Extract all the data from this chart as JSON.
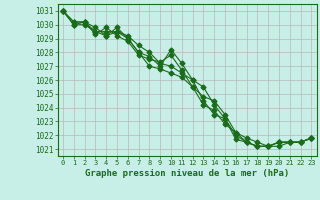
{
  "title": "Graphe pression niveau de la mer (hPa)",
  "background_color": "#c8eee8",
  "grid_color": "#b8b8b8",
  "line_color": "#1a6b1a",
  "x_values": [
    0,
    1,
    2,
    3,
    4,
    5,
    6,
    7,
    8,
    9,
    10,
    11,
    12,
    13,
    14,
    15,
    16,
    17,
    18,
    19,
    20,
    21,
    22,
    23
  ],
  "series": [
    [
      1031.0,
      1030.0,
      1030.2,
      1029.5,
      1029.5,
      1029.5,
      1029.0,
      1028.0,
      1027.7,
      1027.0,
      1028.2,
      1027.2,
      1026.0,
      1025.5,
      1024.2,
      1023.2,
      1021.7,
      1021.5,
      1021.2,
      1021.2,
      1021.5,
      1021.5,
      1021.5,
      1021.8
    ],
    [
      1031.0,
      1030.2,
      1030.2,
      1029.8,
      1029.2,
      1029.5,
      1029.2,
      1028.5,
      1028.0,
      1027.2,
      1027.0,
      1026.5,
      1026.0,
      1024.5,
      1023.5,
      1023.2,
      1022.0,
      1021.5,
      1021.2,
      1021.2,
      1021.2,
      1021.5,
      1021.5,
      1021.8
    ],
    [
      1031.0,
      1030.2,
      1030.2,
      1029.3,
      1029.8,
      1029.2,
      1028.8,
      1027.8,
      1027.5,
      1027.3,
      1027.8,
      1026.7,
      1025.5,
      1024.8,
      1024.5,
      1023.5,
      1022.2,
      1021.8,
      1021.5,
      1021.2,
      1021.5,
      1021.5,
      1021.5,
      1021.8
    ],
    [
      1031.0,
      1030.0,
      1030.0,
      1029.5,
      1029.2,
      1029.8,
      1029.0,
      1028.0,
      1027.0,
      1026.8,
      1026.5,
      1026.2,
      1025.5,
      1024.2,
      1023.8,
      1022.8,
      1022.2,
      1021.5,
      1021.2,
      1021.2,
      1021.5,
      1021.5,
      1021.5,
      1021.8
    ]
  ],
  "ylim": [
    1020.5,
    1031.5
  ],
  "yticks": [
    1021,
    1022,
    1023,
    1024,
    1025,
    1026,
    1027,
    1028,
    1029,
    1030,
    1031
  ],
  "xlim": [
    -0.5,
    23.5
  ],
  "xticks": [
    0,
    1,
    2,
    3,
    4,
    5,
    6,
    7,
    8,
    9,
    10,
    11,
    12,
    13,
    14,
    15,
    16,
    17,
    18,
    19,
    20,
    21,
    22,
    23
  ],
  "marker": "D",
  "marker_size": 2.5,
  "line_width": 0.8,
  "ylabel_fontsize": 5.5,
  "xlabel_fontsize": 5.0,
  "title_fontsize": 6.5
}
